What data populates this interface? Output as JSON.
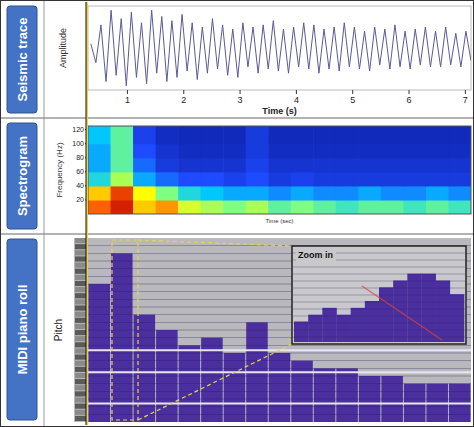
{
  "chart_data": [
    {
      "type": "line",
      "panel_label": "Seismic trace",
      "ylabel": "Amplitude",
      "xlabel": "Time (s)",
      "x": [
        0.35,
        0.44,
        0.53,
        0.62,
        0.71,
        0.8,
        0.89,
        0.98,
        1.07,
        1.16,
        1.25,
        1.34,
        1.43,
        1.52,
        1.61,
        1.7,
        1.79,
        1.88,
        1.97,
        2.06,
        2.15,
        2.24,
        2.33,
        2.42,
        2.51,
        2.6,
        2.69,
        2.78,
        2.87,
        2.96,
        3.05,
        3.14,
        3.23,
        3.32,
        3.41,
        3.5,
        3.59,
        3.68,
        3.77,
        3.86,
        3.95,
        4.04,
        4.13,
        4.22,
        4.31,
        4.4,
        4.49,
        4.58,
        4.67,
        4.76,
        4.85,
        4.94,
        5.03,
        5.12,
        5.21,
        5.3,
        5.39,
        5.48,
        5.57,
        5.66,
        5.75,
        5.84,
        5.93,
        6.02,
        6.11,
        6.2,
        6.29,
        6.38,
        6.47,
        6.56,
        6.65,
        6.74,
        6.83,
        6.92,
        7.01,
        7.1
      ],
      "series": [
        {
          "color": "#5a5a9a",
          "values": [
            0.1,
            -0.35,
            0.55,
            -0.8,
            0.9,
            -0.65,
            0.7,
            -0.9,
            0.85,
            -0.7,
            0.6,
            -0.85,
            0.9,
            -0.6,
            0.75,
            -0.8,
            0.65,
            -0.7,
            0.8,
            -0.55,
            0.6,
            -0.75,
            0.5,
            -0.6,
            0.7,
            -0.5,
            0.55,
            -0.65,
            0.45,
            -0.7,
            0.6,
            -0.45,
            0.5,
            -0.6,
            0.55,
            -0.5,
            0.65,
            -0.55,
            0.45,
            -0.6,
            0.5,
            -0.45,
            0.6,
            -0.5,
            0.55,
            -0.6,
            0.45,
            -0.5,
            0.5,
            -0.55,
            0.6,
            -0.45,
            0.5,
            -0.5,
            0.4,
            -0.55,
            0.5,
            -0.4,
            0.45,
            -0.5,
            0.55,
            -0.45,
            0.4,
            -0.5,
            0.45,
            -0.4,
            0.5,
            -0.45,
            0.4,
            -0.45,
            0.5,
            -0.4,
            0.35,
            -0.45,
            0.4,
            -0.3
          ]
        }
      ],
      "xlim": [
        0.3,
        7.1
      ],
      "xticks": [
        1,
        2,
        3,
        4,
        5,
        6,
        7
      ],
      "ylim": [
        -1,
        1
      ],
      "tick_labels": "x"
    },
    {
      "type": "heatmap",
      "panel_label": "Spectrogram",
      "ylabel": "Frequency (Hz)",
      "xlabel": "Time (sec)",
      "x_edges": [
        0.3,
        0.7,
        1.1,
        1.5,
        1.9,
        2.3,
        2.7,
        3.1,
        3.5,
        3.9,
        4.3,
        4.7,
        5.1,
        5.5,
        5.9,
        6.3,
        6.7,
        7.1
      ],
      "y_edges": [
        0,
        20,
        40,
        60,
        80,
        100,
        125
      ],
      "cells": [
        [
          0.85,
          0.95,
          0.75,
          0.8,
          0.65,
          0.6,
          0.55,
          0.6,
          0.5,
          0.55,
          0.5,
          0.45,
          0.5,
          0.5,
          0.45,
          0.5,
          0.45
        ],
        [
          0.75,
          0.9,
          0.7,
          0.55,
          0.4,
          0.35,
          0.3,
          0.3,
          0.25,
          0.3,
          0.25,
          0.25,
          0.3,
          0.25,
          0.25,
          0.3,
          0.25
        ],
        [
          0.4,
          0.6,
          0.3,
          0.2,
          0.15,
          0.15,
          0.12,
          0.15,
          0.1,
          0.12,
          0.1,
          0.1,
          0.1,
          0.1,
          0.1,
          0.1,
          0.1
        ],
        [
          0.3,
          0.5,
          0.2,
          0.1,
          0.08,
          0.08,
          0.08,
          0.12,
          0.08,
          0.08,
          0.08,
          0.08,
          0.08,
          0.08,
          0.08,
          0.08,
          0.08
        ],
        [
          0.3,
          0.5,
          0.15,
          0.08,
          0.06,
          0.06,
          0.06,
          0.1,
          0.06,
          0.06,
          0.06,
          0.06,
          0.06,
          0.06,
          0.06,
          0.06,
          0.06
        ],
        [
          0.35,
          0.5,
          0.12,
          0.06,
          0.05,
          0.05,
          0.05,
          0.1,
          0.05,
          0.05,
          0.05,
          0.05,
          0.05,
          0.05,
          0.05,
          0.05,
          0.05
        ]
      ],
      "cell_range": [
        0,
        1
      ],
      "xlim": [
        0.3,
        7.1
      ],
      "ylim": [
        0,
        125
      ],
      "yticks": [
        20,
        40,
        60,
        80,
        100,
        120
      ],
      "tick_labels": "y"
    },
    {
      "type": "bar",
      "panel_label": "MIDI piano roll",
      "ylabel": "Pitch",
      "x_edges": [
        0.3,
        0.7,
        1.1,
        1.5,
        1.9,
        2.3,
        2.7,
        3.1,
        3.5,
        3.9,
        4.3,
        4.7,
        5.1,
        5.5,
        5.9,
        6.3,
        6.7,
        7.1
      ],
      "values": [
        18,
        22,
        14,
        12,
        10,
        11,
        9,
        13,
        9,
        8,
        7,
        7,
        6,
        6,
        5,
        5,
        5
      ],
      "xlim": [
        0.3,
        7.1
      ],
      "ylim": [
        0,
        24
      ],
      "color": "#4b2f9e",
      "tick_labels": false,
      "inset": {
        "title": "Zoom in",
        "values": [
          3,
          4,
          5,
          4,
          5,
          6,
          8,
          9,
          10,
          10,
          9,
          7
        ],
        "ylim": [
          0,
          12
        ]
      }
    }
  ]
}
